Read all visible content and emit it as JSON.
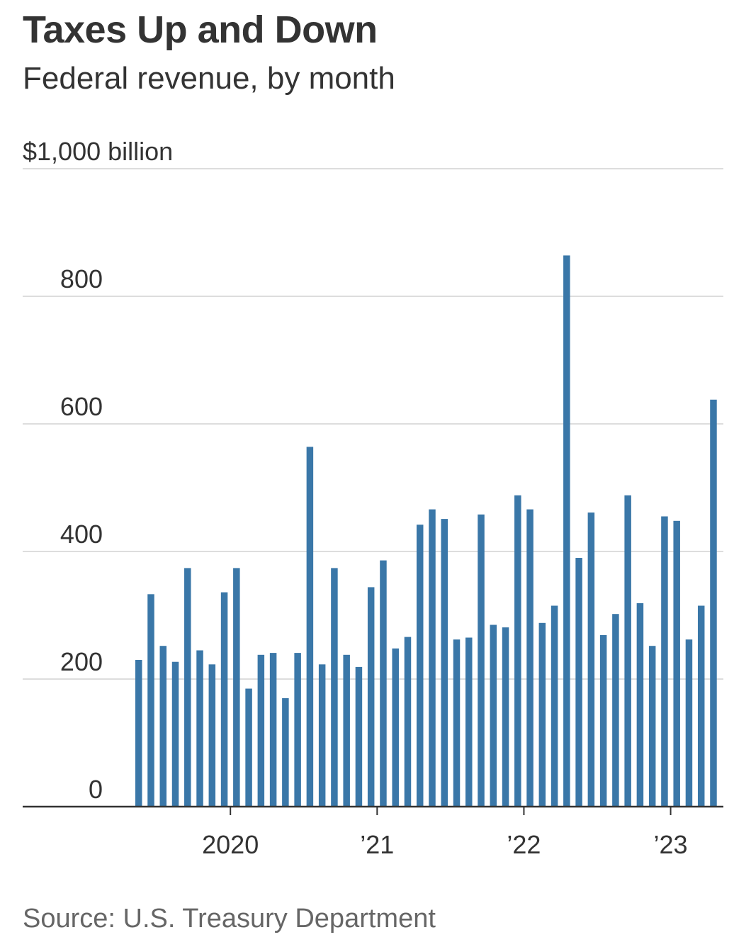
{
  "header": {
    "title": "Taxes Up and Down",
    "subtitle": "Federal revenue, by month"
  },
  "footer": {
    "source": "Source: U.S. Treasury Department"
  },
  "colors": {
    "bar": "#3a77a8",
    "grid": "#dddddd",
    "axis": "#333333"
  },
  "chart_data": {
    "type": "bar",
    "title": "Taxes Up and Down",
    "subtitle": "Federal revenue, by month",
    "ylabel": "",
    "ylim": [
      0,
      1000
    ],
    "y_ticks": [
      0,
      200,
      400,
      600,
      800,
      1000
    ],
    "y_tick_labels": [
      "0",
      "200",
      "400",
      "600",
      "800",
      "$1,000 billion"
    ],
    "x_ticks": [
      {
        "label": "2020",
        "month_index": 8
      },
      {
        "label": "’21",
        "month_index": 20
      },
      {
        "label": "’22",
        "month_index": 32
      },
      {
        "label": "’23",
        "month_index": 44
      }
    ],
    "grid": true,
    "categories": [
      "2019-05",
      "2019-06",
      "2019-07",
      "2019-08",
      "2019-09",
      "2019-10",
      "2019-11",
      "2019-12",
      "2020-01",
      "2020-02",
      "2020-03",
      "2020-04",
      "2020-05",
      "2020-06",
      "2020-07",
      "2020-08",
      "2020-09",
      "2020-10",
      "2020-11",
      "2020-12",
      "2021-01",
      "2021-02",
      "2021-03",
      "2021-04",
      "2021-05",
      "2021-06",
      "2021-07",
      "2021-08",
      "2021-09",
      "2021-10",
      "2021-11",
      "2021-12",
      "2022-01",
      "2022-02",
      "2022-03",
      "2022-04",
      "2022-05",
      "2022-06",
      "2022-07",
      "2022-08",
      "2022-09",
      "2022-10",
      "2022-11",
      "2022-12",
      "2023-01",
      "2023-02",
      "2023-03",
      "2023-04"
    ],
    "values": [
      230,
      333,
      252,
      227,
      374,
      245,
      223,
      336,
      374,
      185,
      238,
      241,
      170,
      241,
      564,
      223,
      374,
      238,
      219,
      344,
      386,
      248,
      266,
      442,
      466,
      451,
      262,
      265,
      458,
      285,
      281,
      488,
      466,
      288,
      315,
      864,
      390,
      461,
      269,
      302,
      488,
      319,
      252,
      455,
      448,
      262,
      315,
      638
    ]
  }
}
